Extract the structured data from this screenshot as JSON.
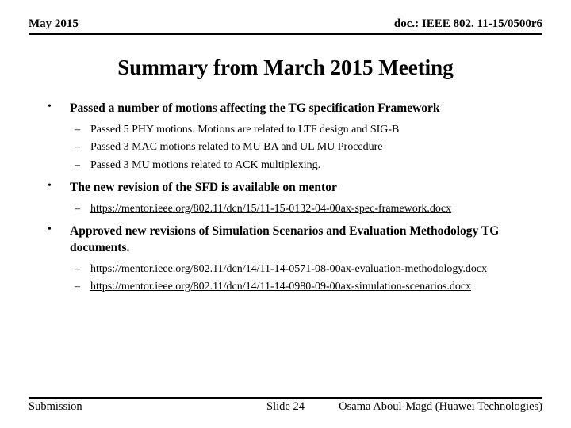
{
  "header": {
    "left": "May 2015",
    "right": "doc.: IEEE 802. 11-15/0500r6"
  },
  "title": "Summary from March 2015 Meeting",
  "bullets": [
    {
      "text": "Passed a number of motions affecting the TG specification Framework",
      "subs": [
        {
          "text": "Passed 5 PHY motions. Motions are related to LTF design and SIG-B",
          "link": false
        },
        {
          "text": "Passed 3 MAC motions related to MU BA and UL MU Procedure",
          "link": false
        },
        {
          "text": "Passed 3 MU motions related to ACK multiplexing.",
          "link": false
        }
      ]
    },
    {
      "text": "The new revision of the SFD is available on mentor",
      "subs": [
        {
          "text": "https://mentor.ieee.org/802.11/dcn/15/11-15-0132-04-00ax-spec-framework.docx",
          "link": true
        }
      ]
    },
    {
      "text": "Approved new revisions of Simulation Scenarios and Evaluation Methodology TG documents.",
      "subs": [
        {
          "text": "https://mentor.ieee.org/802.11/dcn/14/11-14-0571-08-00ax-evaluation-methodology.docx",
          "link": true
        },
        {
          "text": "https://mentor.ieee.org/802.11/dcn/14/11-14-0980-09-00ax-simulation-scenarios.docx",
          "link": true
        }
      ]
    }
  ],
  "footer": {
    "left": "Submission",
    "center": "Slide 24",
    "right": "Osama Aboul-Magd (Huawei Technologies)"
  }
}
